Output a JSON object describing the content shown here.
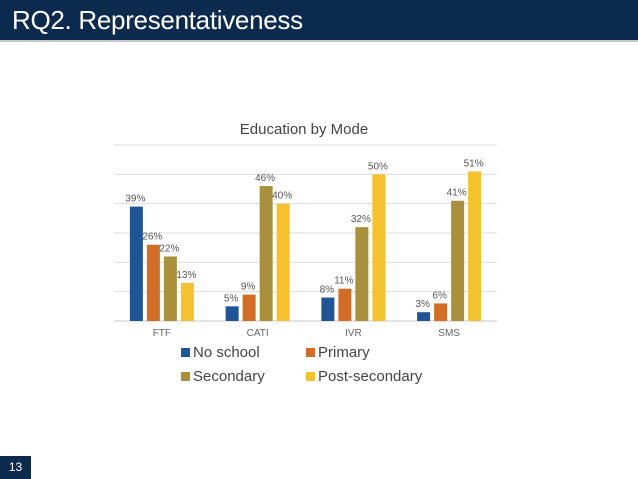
{
  "slide": {
    "title": "RQ2. Representativeness",
    "page_number": "13"
  },
  "colors": {
    "header_bg": "#0b2a4e",
    "series": [
      "#1f5596",
      "#d36d26",
      "#a8913a",
      "#f5c12d"
    ]
  },
  "chart_data": {
    "type": "bar",
    "title": "Education by Mode",
    "categories": [
      "FTF",
      "CATI",
      "IVR",
      "SMS"
    ],
    "series": [
      {
        "name": "No school",
        "values": [
          39,
          5,
          8,
          3
        ]
      },
      {
        "name": "Primary",
        "values": [
          26,
          9,
          11,
          6
        ]
      },
      {
        "name": "Secondary",
        "values": [
          22,
          46,
          32,
          41
        ]
      },
      {
        "name": "Post-secondary",
        "values": [
          13,
          40,
          50,
          51
        ]
      }
    ],
    "value_suffix": "%",
    "ylim": [
      0,
      60
    ],
    "grid": true,
    "legend": "bottom"
  }
}
